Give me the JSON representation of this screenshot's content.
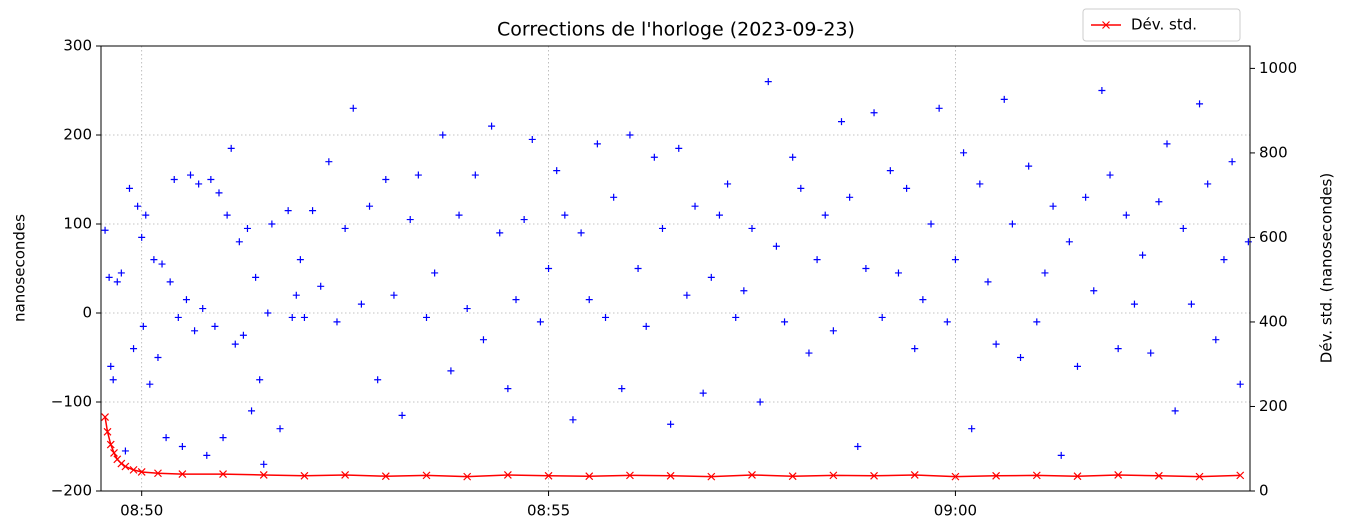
{
  "chart_data": {
    "type": "scatter",
    "title": "Corrections de l'horloge (2023-09-23)",
    "ylabel": "nanosecondes",
    "y2label": "Dév. std. (nanosecondes)",
    "xlim": [
      529.5,
      543.62
    ],
    "xticks": [
      {
        "value": 530,
        "label": "08:50"
      },
      {
        "value": 535,
        "label": "08:55"
      },
      {
        "value": 540,
        "label": "09:00"
      }
    ],
    "ylim": [
      -200,
      300
    ],
    "yticks": [
      {
        "value": -200,
        "label": "−200"
      },
      {
        "value": -100,
        "label": "−100"
      },
      0,
      100,
      200,
      300
    ],
    "y2lim": [
      0,
      1053
    ],
    "y2ticks": [
      0,
      200,
      400,
      600,
      800,
      1000
    ],
    "grid": true,
    "legend": "upper right",
    "series": [
      {
        "color": "#0000ff",
        "marker": "+",
        "x": [
          529.55,
          529.6,
          529.62,
          529.65,
          529.7,
          529.75,
          529.8,
          529.85,
          529.9,
          529.95,
          530.0,
          530.02,
          530.05,
          530.1,
          530.15,
          530.2,
          530.25,
          530.3,
          530.35,
          530.4,
          530.45,
          530.5,
          530.55,
          530.6,
          530.65,
          530.7,
          530.75,
          530.8,
          530.85,
          530.9,
          530.95,
          531.0,
          531.05,
          531.1,
          531.15,
          531.2,
          531.25,
          531.3,
          531.35,
          531.4,
          531.45,
          531.5,
          531.55,
          531.6,
          531.7,
          531.8,
          531.85,
          531.9,
          531.95,
          532.0,
          532.1,
          532.2,
          532.3,
          532.4,
          532.5,
          532.6,
          532.7,
          532.8,
          532.9,
          533.0,
          533.1,
          533.2,
          533.3,
          533.4,
          533.5,
          533.6,
          533.7,
          533.8,
          533.9,
          534.0,
          534.1,
          534.2,
          534.3,
          534.4,
          534.5,
          534.6,
          534.7,
          534.8,
          534.9,
          535.0,
          535.1,
          535.2,
          535.3,
          535.4,
          535.5,
          535.6,
          535.7,
          535.8,
          535.9,
          536.0,
          536.1,
          536.2,
          536.3,
          536.4,
          536.5,
          536.6,
          536.7,
          536.8,
          536.9,
          537.0,
          537.1,
          537.2,
          537.3,
          537.4,
          537.5,
          537.6,
          537.7,
          537.8,
          537.9,
          538.0,
          538.1,
          538.2,
          538.3,
          538.4,
          538.5,
          538.6,
          538.7,
          538.8,
          538.9,
          539.0,
          539.1,
          539.2,
          539.3,
          539.4,
          539.5,
          539.6,
          539.7,
          539.8,
          539.9,
          540.0,
          540.1,
          540.2,
          540.3,
          540.4,
          540.5,
          540.6,
          540.7,
          540.8,
          540.9,
          541.0,
          541.1,
          541.2,
          541.3,
          541.4,
          541.5,
          541.6,
          541.7,
          541.8,
          541.9,
          542.0,
          542.1,
          542.2,
          542.3,
          542.4,
          542.5,
          542.6,
          542.7,
          542.8,
          542.9,
          543.0,
          543.1,
          543.2,
          543.3,
          543.4,
          543.5,
          543.6
        ],
        "values": [
          93,
          40,
          -60,
          -75,
          35,
          45,
          -155,
          140,
          -40,
          120,
          85,
          -15,
          110,
          -80,
          60,
          -50,
          55,
          -140,
          35,
          150,
          -5,
          -150,
          15,
          155,
          -20,
          145,
          5,
          -160,
          150,
          -15,
          135,
          -140,
          110,
          185,
          -35,
          80,
          -25,
          95,
          -110,
          40,
          -75,
          -170,
          0,
          100,
          -130,
          115,
          -5,
          20,
          60,
          -5,
          115,
          30,
          170,
          -10,
          95,
          230,
          10,
          120,
          -75,
          150,
          20,
          -115,
          105,
          155,
          -5,
          45,
          200,
          -65,
          110,
          5,
          155,
          -30,
          210,
          90,
          -85,
          15,
          105,
          195,
          -10,
          50,
          160,
          110,
          -120,
          90,
          15,
          190,
          -5,
          130,
          -85,
          200,
          50,
          -15,
          175,
          95,
          -125,
          185,
          20,
          120,
          -90,
          40,
          110,
          145,
          -5,
          25,
          95,
          -100,
          260,
          75,
          -10,
          175,
          140,
          -45,
          60,
          110,
          -20,
          215,
          130,
          -150,
          50,
          225,
          -5,
          160,
          45,
          140,
          -40,
          15,
          100,
          230,
          -10,
          60,
          180,
          -130,
          145,
          35,
          -35,
          240,
          100,
          -50,
          165,
          -10,
          45,
          120,
          -160,
          80,
          -60,
          130,
          25,
          250,
          155,
          -40,
          110,
          10,
          65,
          -45,
          125,
          190,
          -110,
          95,
          10,
          235,
          145,
          -30,
          60,
          170,
          -80,
          80
        ]
      },
      {
        "name": "Dév. std.",
        "color": "#ff0000",
        "marker": "x",
        "axis": "y2",
        "x": [
          529.55,
          529.58,
          529.62,
          529.66,
          529.7,
          529.75,
          529.8,
          529.9,
          530.0,
          530.2,
          530.5,
          531.0,
          531.5,
          532.0,
          532.5,
          533.0,
          533.5,
          534.0,
          534.5,
          535.0,
          535.5,
          536.0,
          536.5,
          537.0,
          537.5,
          538.0,
          538.5,
          539.0,
          539.5,
          540.0,
          540.5,
          541.0,
          541.5,
          542.0,
          542.5,
          543.0,
          543.5
        ],
        "values": [
          175,
          140,
          110,
          90,
          75,
          65,
          58,
          50,
          45,
          42,
          40,
          40,
          38,
          36,
          38,
          35,
          37,
          34,
          38,
          36,
          35,
          37,
          36,
          34,
          38,
          35,
          37,
          36,
          38,
          34,
          36,
          37,
          35,
          38,
          36,
          34,
          37
        ]
      }
    ]
  }
}
